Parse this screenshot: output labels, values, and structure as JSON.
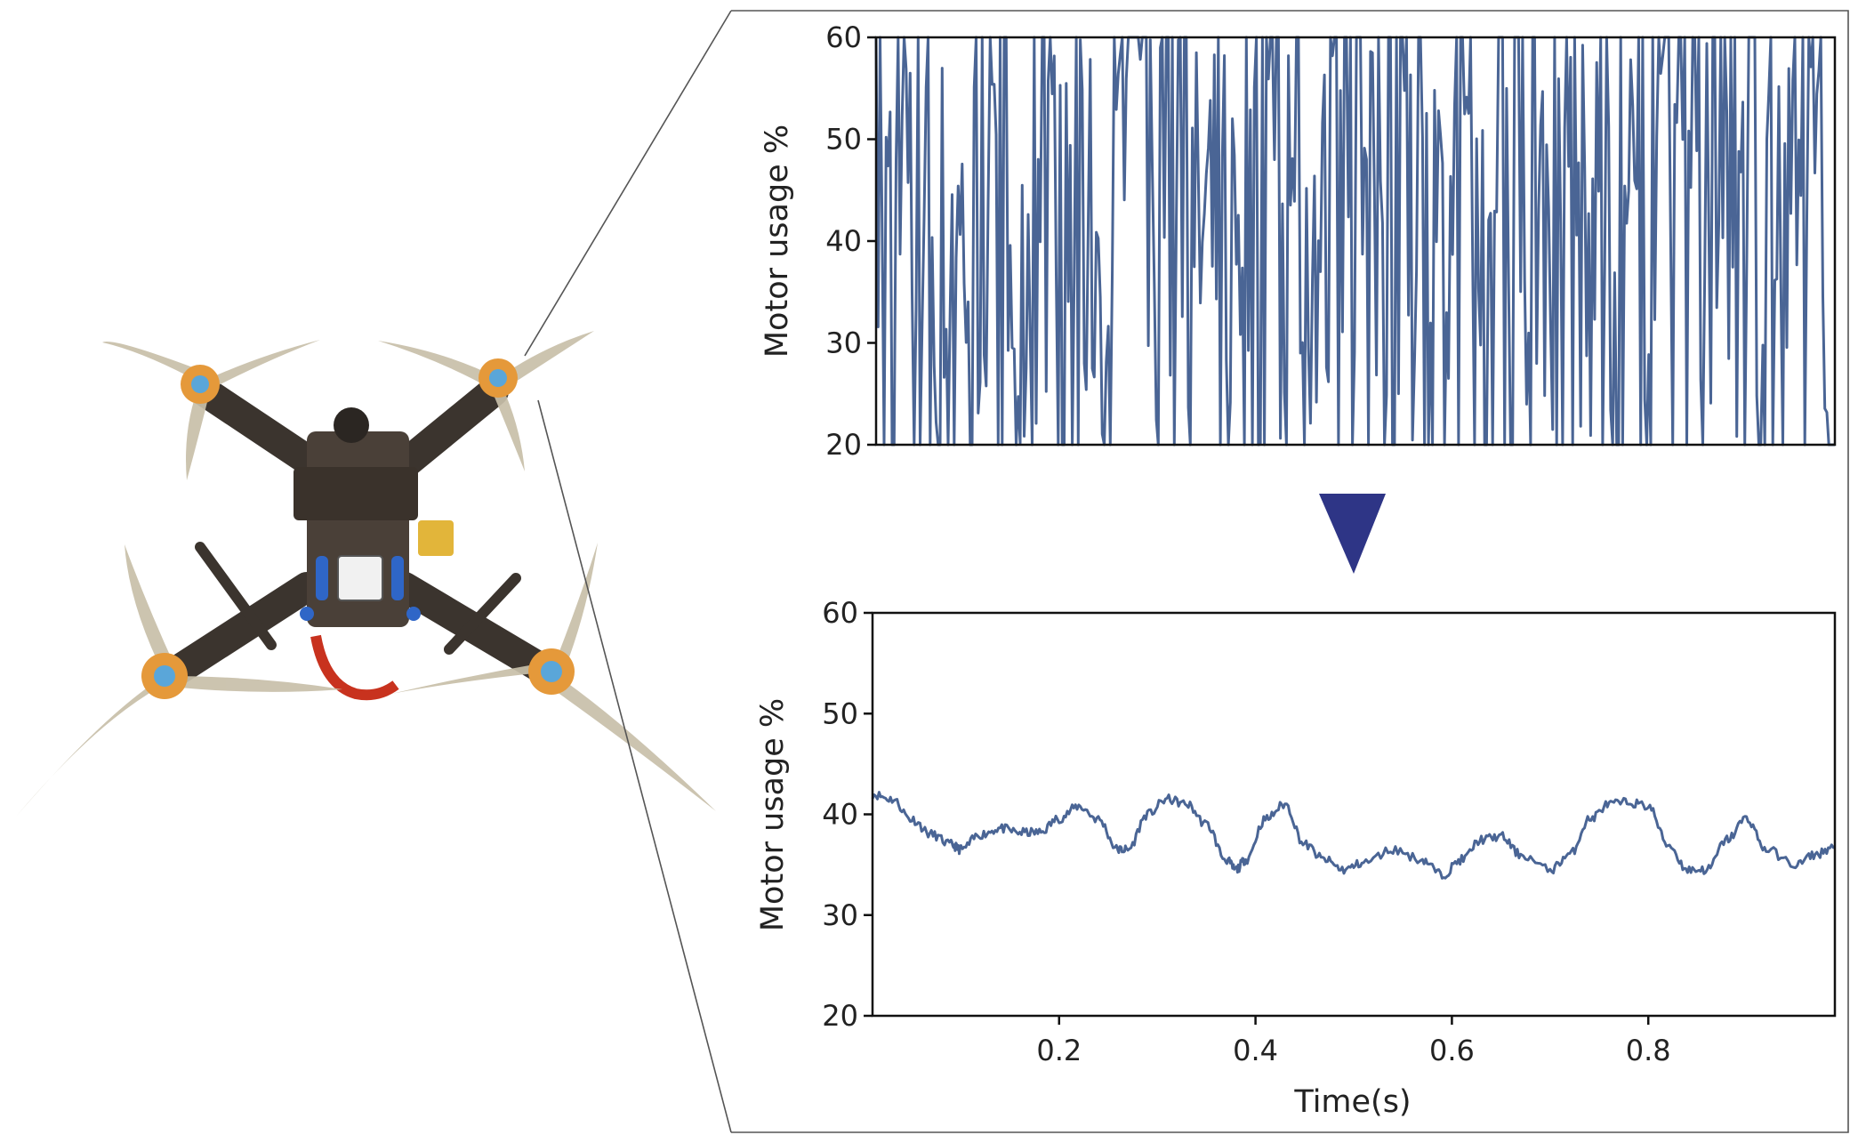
{
  "colors": {
    "series": "#4a6595",
    "arrow": "#2e3586",
    "axis": "#111111",
    "frame_line": "#555555",
    "carbon": "#4a4038",
    "prop": "#c8bfa9",
    "motor_orange": "#e5993a",
    "motor_cap": "#5aa6d9",
    "battery_red": "#c8321e"
  },
  "illustration": {
    "subject": "quadcopter-drone",
    "icons": [
      "drone-icon",
      "zoom-connector-lines",
      "arrow-down-icon"
    ]
  },
  "chart_data": [
    {
      "type": "line",
      "title": "",
      "xlabel": "",
      "ylabel": "Motor usage %",
      "xlim": [
        0.01,
        0.99
      ],
      "ylim": [
        20,
        60
      ],
      "yticks": [
        20,
        30,
        40,
        50,
        60
      ],
      "xticks": [],
      "grid": false,
      "legend": "none",
      "series": [
        {
          "description_of_signal": "raw-noisy",
          "sample_count": 480,
          "value_min": 20,
          "value_max": 60
        }
      ]
    },
    {
      "type": "line",
      "title": "",
      "xlabel": "Time(s)",
      "ylabel": "Motor usage %",
      "xlim": [
        0.01,
        0.99
      ],
      "ylim": [
        20,
        60
      ],
      "yticks": [
        20,
        30,
        40,
        50,
        60
      ],
      "xticks": [
        0.2,
        0.4,
        0.6,
        0.8
      ],
      "xtick_labels": [
        "0.2",
        "0.4",
        "0.6",
        "0.8"
      ],
      "grid": false,
      "legend": "none",
      "series": [
        {
          "x": [
            0.01,
            0.03,
            0.05,
            0.07,
            0.09,
            0.1,
            0.12,
            0.14,
            0.16,
            0.18,
            0.2,
            0.22,
            0.24,
            0.26,
            0.27,
            0.29,
            0.31,
            0.33,
            0.35,
            0.37,
            0.38,
            0.39,
            0.41,
            0.43,
            0.45,
            0.47,
            0.49,
            0.51,
            0.54,
            0.57,
            0.59,
            0.61,
            0.63,
            0.65,
            0.67,
            0.7,
            0.72,
            0.74,
            0.76,
            0.78,
            0.8,
            0.82,
            0.84,
            0.86,
            0.88,
            0.9,
            0.92,
            0.95,
            0.97,
            0.99
          ],
          "y": [
            42,
            41.5,
            39.5,
            38,
            37,
            36.5,
            38,
            38.6,
            38.2,
            38.2,
            39.6,
            40.8,
            39.5,
            36.5,
            36.5,
            40,
            41.5,
            41,
            39,
            35.5,
            34.5,
            35.5,
            39.5,
            41,
            37,
            35.5,
            34.5,
            35.2,
            36.5,
            35.5,
            34,
            35.5,
            37.5,
            37.8,
            36,
            34.5,
            36,
            39.5,
            41,
            41.2,
            40.8,
            37,
            34.5,
            34.5,
            37.5,
            39.6,
            36.5,
            35,
            36,
            36.8
          ]
        }
      ]
    }
  ]
}
